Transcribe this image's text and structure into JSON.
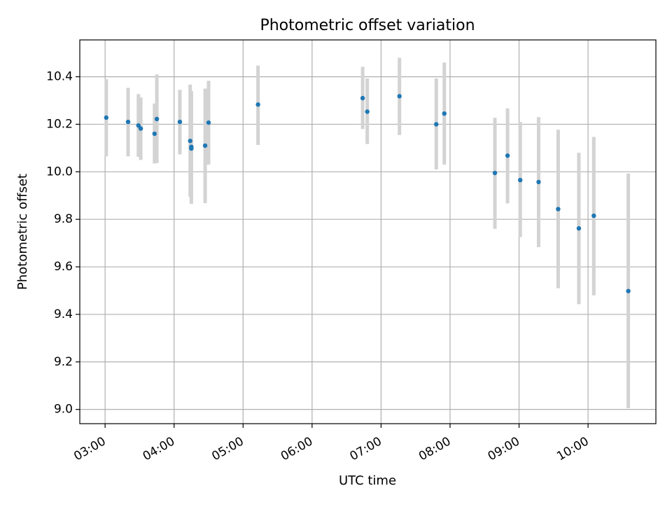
{
  "chart_data": {
    "type": "scatter",
    "title": "Photometric offset variation",
    "xlabel": "UTC time",
    "ylabel": "Photometric offset",
    "x_tick_labels": [
      "03:00",
      "04:00",
      "05:00",
      "06:00",
      "07:00",
      "08:00",
      "09:00",
      "10:00"
    ],
    "x_tick_values": [
      "03:00",
      "04:00",
      "05:00",
      "06:00",
      "07:00",
      "08:00",
      "09:00",
      "10:00"
    ],
    "xlim": [
      "02:38",
      "10:59"
    ],
    "y_tick_labels": [
      "9.0",
      "9.2",
      "9.4",
      "9.6",
      "9.8",
      "10.0",
      "10.2",
      "10.4"
    ],
    "y_tick_values": [
      9.0,
      9.2,
      9.4,
      9.6,
      9.8,
      10.0,
      10.2,
      10.4
    ],
    "ylim": [
      8.94,
      10.555
    ],
    "grid": true,
    "marker_color": "#1f77b4",
    "errorbar_color": "#d3d3d3",
    "points": [
      {
        "x": "03:01",
        "y": 10.228,
        "low": 10.065,
        "high": 10.39
      },
      {
        "x": "03:20",
        "y": 10.21,
        "low": 10.065,
        "high": 10.353
      },
      {
        "x": "03:29",
        "y": 10.195,
        "low": 10.063,
        "high": 10.327
      },
      {
        "x": "03:31",
        "y": 10.182,
        "low": 10.05,
        "high": 10.313
      },
      {
        "x": "03:43",
        "y": 10.16,
        "low": 10.035,
        "high": 10.287
      },
      {
        "x": "03:45",
        "y": 10.222,
        "low": 10.037,
        "high": 10.41
      },
      {
        "x": "04:05",
        "y": 10.21,
        "low": 10.073,
        "high": 10.345
      },
      {
        "x": "04:14",
        "y": 10.13,
        "low": 9.895,
        "high": 10.367
      },
      {
        "x": "04:15",
        "y": 10.098,
        "low": 9.865,
        "high": 10.34
      },
      {
        "x": "04:15",
        "y": 10.105,
        "low": 9.885,
        "high": 10.325
      },
      {
        "x": "04:27",
        "y": 10.11,
        "low": 9.868,
        "high": 10.35
      },
      {
        "x": "04:30",
        "y": 10.207,
        "low": 10.03,
        "high": 10.383
      },
      {
        "x": "05:13",
        "y": 10.283,
        "low": 10.113,
        "high": 10.447
      },
      {
        "x": "06:44",
        "y": 10.31,
        "low": 10.18,
        "high": 10.442
      },
      {
        "x": "06:48",
        "y": 10.253,
        "low": 10.117,
        "high": 10.393
      },
      {
        "x": "07:16",
        "y": 10.318,
        "low": 10.155,
        "high": 10.48
      },
      {
        "x": "07:48",
        "y": 10.2,
        "low": 10.01,
        "high": 10.393
      },
      {
        "x": "07:55",
        "y": 10.245,
        "low": 10.03,
        "high": 10.46
      },
      {
        "x": "08:39",
        "y": 9.995,
        "low": 9.76,
        "high": 10.227
      },
      {
        "x": "08:50",
        "y": 10.068,
        "low": 9.867,
        "high": 10.267
      },
      {
        "x": "09:01",
        "y": 9.965,
        "low": 9.725,
        "high": 10.21
      },
      {
        "x": "09:17",
        "y": 9.957,
        "low": 9.683,
        "high": 10.23
      },
      {
        "x": "09:34",
        "y": 9.843,
        "low": 9.51,
        "high": 10.177
      },
      {
        "x": "09:52",
        "y": 9.762,
        "low": 9.443,
        "high": 10.08
      },
      {
        "x": "10:05",
        "y": 9.815,
        "low": 9.48,
        "high": 10.147
      },
      {
        "x": "10:35",
        "y": 9.498,
        "low": 9.005,
        "high": 9.993
      }
    ]
  }
}
